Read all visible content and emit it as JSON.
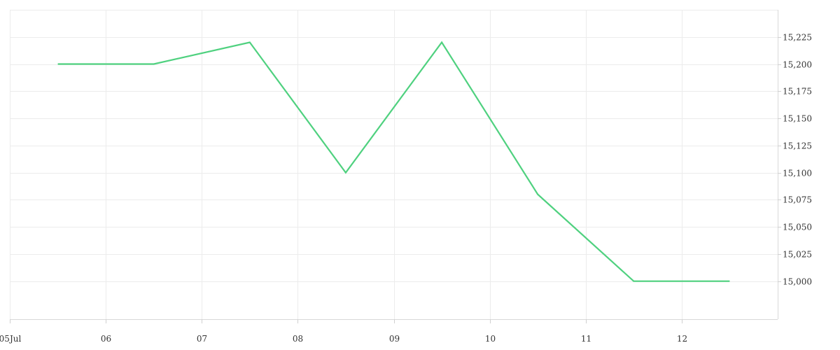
{
  "chart_data": {
    "type": "line",
    "title": "",
    "xlabel": "",
    "ylabel": "",
    "x_ticks": [
      "05Jul",
      "06",
      "07",
      "08",
      "09",
      "10",
      "11",
      "12"
    ],
    "y_ticks": [
      "15,000",
      "15,025",
      "15,050",
      "15,075",
      "15,100",
      "15,125",
      "15,150",
      "15,175",
      "15,200",
      "15,225"
    ],
    "y_axis_position": "right",
    "grid": true,
    "legend": "none",
    "xlim": [
      "2023-07-05T00:00",
      "2023-07-13T00:00"
    ],
    "ylim": [
      14965,
      15250
    ],
    "series": [
      {
        "color": "#4fd17f",
        "points": [
          {
            "x": "2023-07-05T12:00",
            "y": 15200
          },
          {
            "x": "2023-07-06T12:00",
            "y": 15200
          },
          {
            "x": "2023-07-07T12:00",
            "y": 15220
          },
          {
            "x": "2023-07-08T12:00",
            "y": 15100
          },
          {
            "x": "2023-07-09T12:00",
            "y": 15220
          },
          {
            "x": "2023-07-10T12:00",
            "y": 15080
          },
          {
            "x": "2023-07-11T12:00",
            "y": 15000
          },
          {
            "x": "2023-07-12T12:00",
            "y": 15000
          }
        ]
      }
    ]
  }
}
